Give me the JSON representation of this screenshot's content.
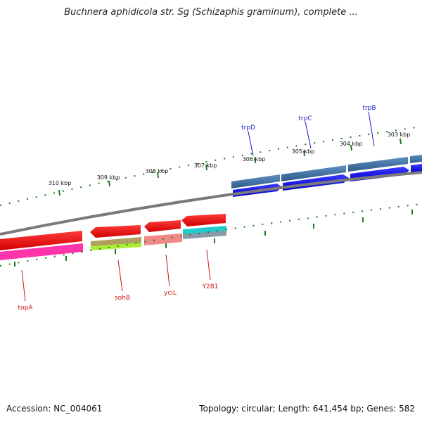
{
  "title": "Buchnera aphidicola str. Sg (Schizaphis graminum), complete ...",
  "footer": {
    "accession": "Accession: NC_004061",
    "summary": "Topology: circular; Length: 641,454 bp; Genes: 582"
  },
  "colors": {
    "backbone": "#808080",
    "tick": "#1f7a1f",
    "forward_label": "#1a1acc",
    "reverse_label": "#cc1111",
    "cds_forward": "#0000ee",
    "cds_reverse": "#ff0000",
    "gene_forward": "#4a7fb0",
    "cog_magenta": "#ff33aa",
    "cog_olive": "#b0a060",
    "cog_yellowgreen": "#aaee33",
    "cog_pink": "#f08888",
    "cog_cyan": "#22cccc",
    "cog_slate": "#8899aa"
  },
  "scale_labels": [
    "310 kbp",
    "309 kbp",
    "308 kbp",
    "307 kbp",
    "306 kbp",
    "305 kbp",
    "304 kbp",
    "303 kbp"
  ],
  "genes_forward": [
    {
      "name": "trpD"
    },
    {
      "name": "trpC"
    },
    {
      "name": "trpB"
    }
  ],
  "genes_reverse": [
    {
      "name": "topA"
    },
    {
      "name": "sohB"
    },
    {
      "name": "yciL"
    },
    {
      "name": "Y281"
    }
  ]
}
